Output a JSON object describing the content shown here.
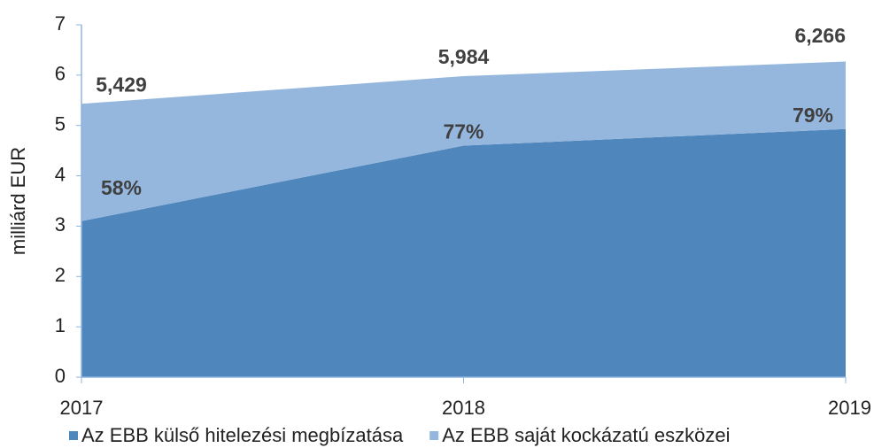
{
  "chart_data": {
    "type": "stacked-area",
    "y_label": "milliárd EUR",
    "categories": [
      "2017",
      "2018",
      "2019"
    ],
    "series": [
      {
        "name": "Az EBB külső hitelezési megbízatása",
        "color": "#4f86bc",
        "values": [
          3.1,
          4.6,
          4.93
        ]
      },
      {
        "name": "Az EBB saját kockázatú eszközei",
        "color": "#95b7de",
        "values": [
          2.33,
          1.38,
          1.34
        ]
      }
    ],
    "totals": {
      "values": [
        5.429,
        5.984,
        6.266
      ],
      "value_labels": [
        "5,429",
        "5,984",
        "6,266"
      ]
    },
    "shares": {
      "values": [
        58,
        77,
        79
      ],
      "value_labels": [
        "58%",
        "77%",
        "79%"
      ]
    },
    "ylim": [
      0,
      7
    ],
    "yticks": [
      0,
      1,
      2,
      3,
      4,
      5,
      6,
      7
    ],
    "legend": "bottom"
  }
}
